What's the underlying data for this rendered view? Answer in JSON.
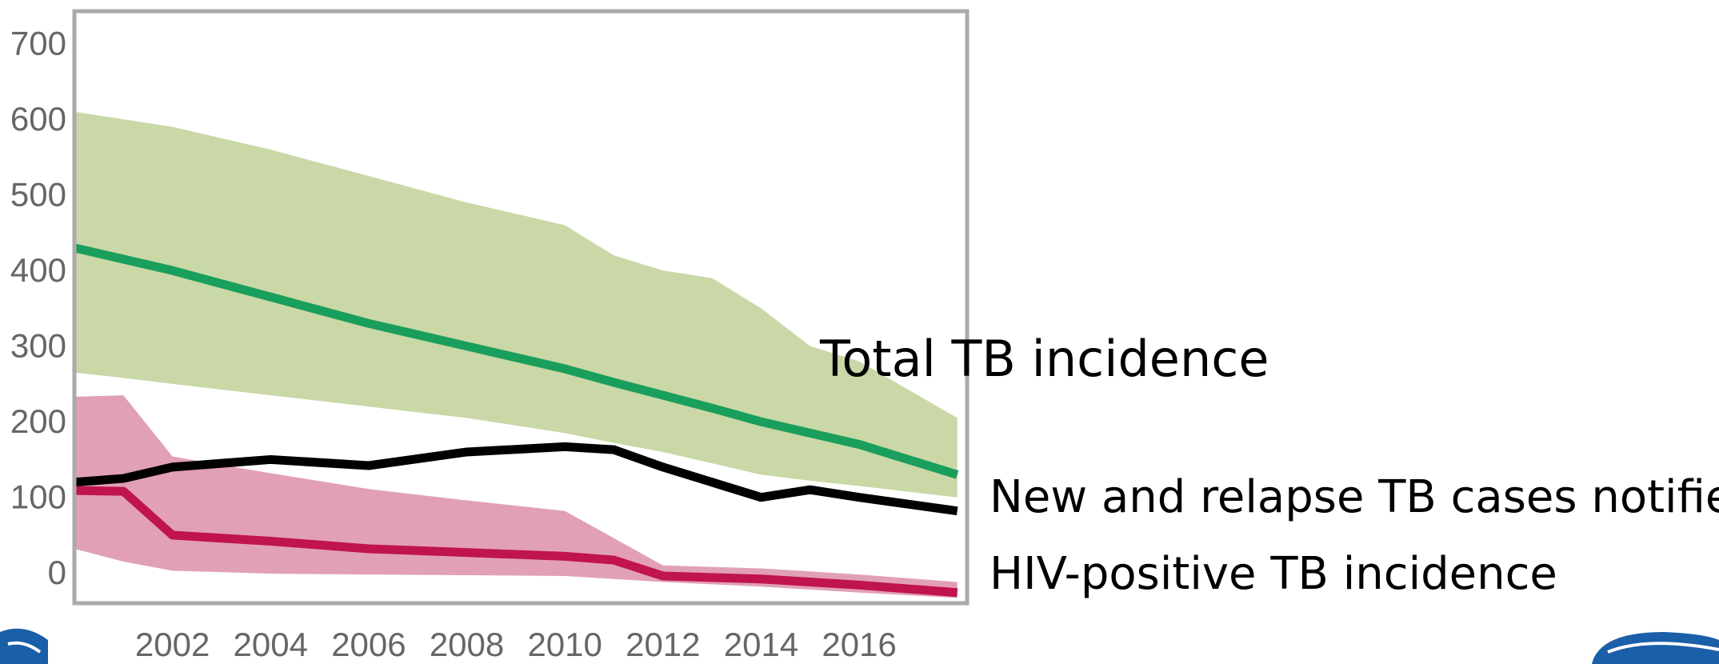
{
  "chart_data": {
    "type": "line",
    "x": [
      2000,
      2001,
      2002,
      2004,
      2006,
      2008,
      2010,
      2011,
      2012,
      2013,
      2014,
      2015,
      2016,
      2018
    ],
    "xlim": [
      2000,
      2018.2
    ],
    "xticks": [
      2002,
      2004,
      2006,
      2008,
      2010,
      2012,
      2014,
      2016
    ],
    "ylim": [
      -40,
      743
    ],
    "yticks": [
      0,
      100,
      200,
      300,
      400,
      500,
      600,
      700
    ],
    "bands": [
      {
        "color": "#c9d8a6",
        "upper": [
          610,
          600,
          590,
          560,
          525,
          490,
          460,
          420,
          400,
          390,
          350,
          300,
          280,
          205
        ],
        "lower": [
          265,
          258,
          250,
          235,
          220,
          205,
          185,
          172,
          160,
          145,
          130,
          122,
          115,
          100
        ]
      },
      {
        "color": "#dc8fab",
        "upper": [
          233,
          235,
          154,
          132,
          111,
          96,
          82,
          46,
          10,
          8,
          6,
          2,
          -2,
          -12
        ],
        "lower": [
          32,
          15,
          3,
          -1,
          -2,
          -3,
          -4,
          -8,
          -12,
          -15,
          -18,
          -22,
          -26,
          -33
        ]
      }
    ],
    "series": [
      {
        "name": "Total TB incidence",
        "color": "#1a9e5c",
        "values": [
          430,
          415,
          400,
          365,
          330,
          300,
          270,
          252,
          235,
          218,
          200,
          185,
          170,
          130
        ]
      },
      {
        "name": "New and relapse TB cases notified",
        "color": "#000000",
        "values": [
          120,
          125,
          140,
          150,
          142,
          160,
          167,
          163,
          140,
          120,
          100,
          110,
          100,
          82
        ]
      },
      {
        "name": "HIV-positive TB incidence",
        "color": "#c0144c",
        "values": [
          109,
          108,
          50,
          42,
          32,
          27,
          22,
          17,
          -4,
          -6,
          -8,
          -12,
          -16,
          -26
        ]
      }
    ]
  }
}
